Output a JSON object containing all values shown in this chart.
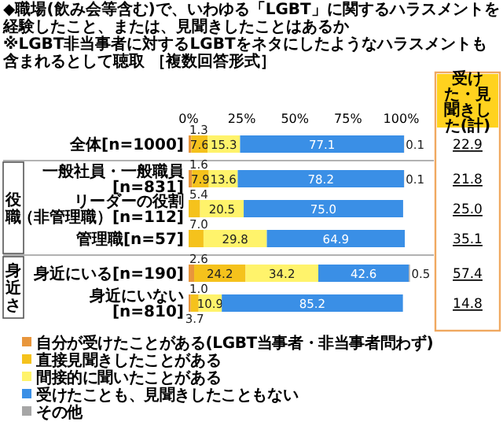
{
  "chart_data": {
    "type": "bar",
    "orientation": "horizontal",
    "stacked": true,
    "legend": "bottom",
    "grid": false,
    "title": "◆職場(飲み会等含む)で、いわゆる「LGBT」に関するハラスメントを経験したこと、または、見聞きしたことはあるか",
    "subtitle": "※LGBT非当事者に対するLGBTをネタにしたようなハラスメントも含まれるとして聴取 ［複数回答形式］",
    "categories": [
      "全体[n=1000]",
      "一般社員・一般職員[n=831]",
      "リーダーの役割（非管理職）[n=112]",
      "管理職[n=57]",
      "身近にいる[n=190]",
      "身近にいない[n=810]"
    ],
    "xlim": [
      0,
      105
    ],
    "xticks": [
      {
        "value": 0,
        "label": "0%"
      },
      {
        "value": 25,
        "label": "25%"
      },
      {
        "value": 50,
        "label": "50%"
      },
      {
        "value": 75,
        "label": "75%"
      },
      {
        "value": 100,
        "label": "100%"
      }
    ],
    "series": [
      {
        "name": "自分が受けたことがある(LGBT当事者・非当事者問わず)",
        "color": "#e8963c",
        "values": [
          1.3,
          1.6,
          null,
          null,
          2.6,
          1.0
        ],
        "value_labels": [
          "1.3",
          "1.6",
          null,
          null,
          "2.6",
          "1.0"
        ]
      },
      {
        "name": "直接見聞きしたことがある",
        "color": "#f5c21c",
        "values": [
          7.6,
          7.9,
          5.4,
          7.0,
          24.2,
          3.7
        ],
        "value_labels": [
          "7.6",
          "7.9",
          "5.4",
          "7.0",
          "24.2",
          "3.7"
        ]
      },
      {
        "name": "間接的に聞いたことがある",
        "color": "#fff36b",
        "values": [
          15.3,
          13.6,
          20.5,
          29.8,
          34.2,
          10.9
        ],
        "value_labels": [
          "15.3",
          "13.6",
          "20.5",
          "29.8",
          "34.2",
          "10.9"
        ]
      },
      {
        "name": "受けたことも、見聞きしたこともない",
        "color": "#3a8fe6",
        "values": [
          77.1,
          78.2,
          75.0,
          64.9,
          42.6,
          85.2
        ],
        "value_labels": [
          "77.1",
          "78.2",
          "75.0",
          "64.9",
          "42.6",
          "85.2"
        ]
      },
      {
        "name": "その他",
        "color": "#a6a6a6",
        "values": [
          0.1,
          0.1,
          null,
          null,
          0.5,
          null
        ],
        "value_labels": [
          "0.1",
          "0.1",
          null,
          null,
          "0.5",
          null
        ]
      }
    ],
    "annotations": [
      "受けた・見聞きした(計)",
      "22.9",
      "21.8",
      "25.0",
      "35.1",
      "57.4",
      "14.8",
      "役職",
      "身近さ"
    ]
  }
}
